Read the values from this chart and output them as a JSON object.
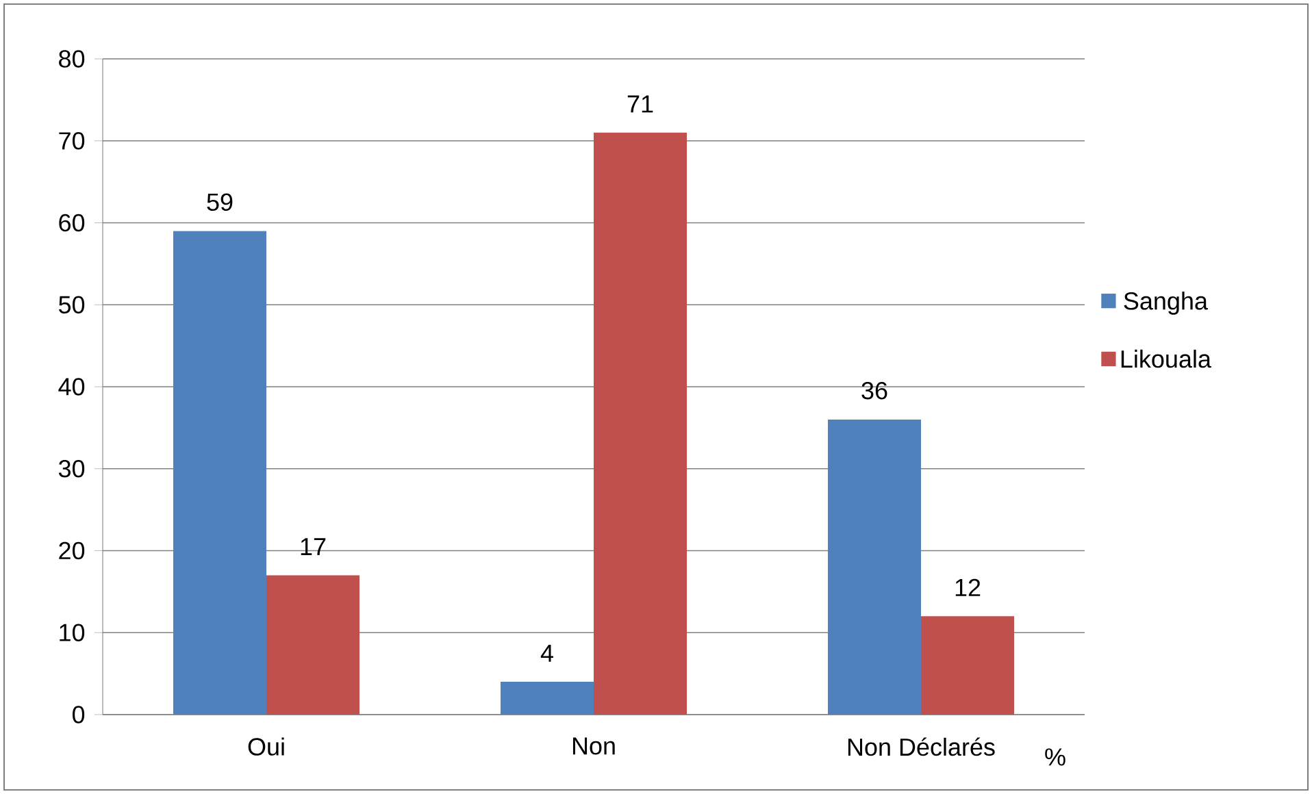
{
  "chart_data": {
    "type": "bar",
    "xlabel": "%",
    "categories": [
      "Oui",
      "Non",
      "Non Déclarés"
    ],
    "series": [
      {
        "name": "Sangha",
        "color": "#4f81bd",
        "values": [
          59,
          4,
          36
        ]
      },
      {
        "name": "Likouala",
        "color": "#c0504d",
        "values": [
          17,
          71,
          12
        ]
      }
    ],
    "ylim": [
      0,
      80
    ],
    "yticks": [
      0,
      10,
      20,
      30,
      40,
      50,
      60,
      70,
      80
    ],
    "grid": "y",
    "legend": "right",
    "data_labels": true
  }
}
